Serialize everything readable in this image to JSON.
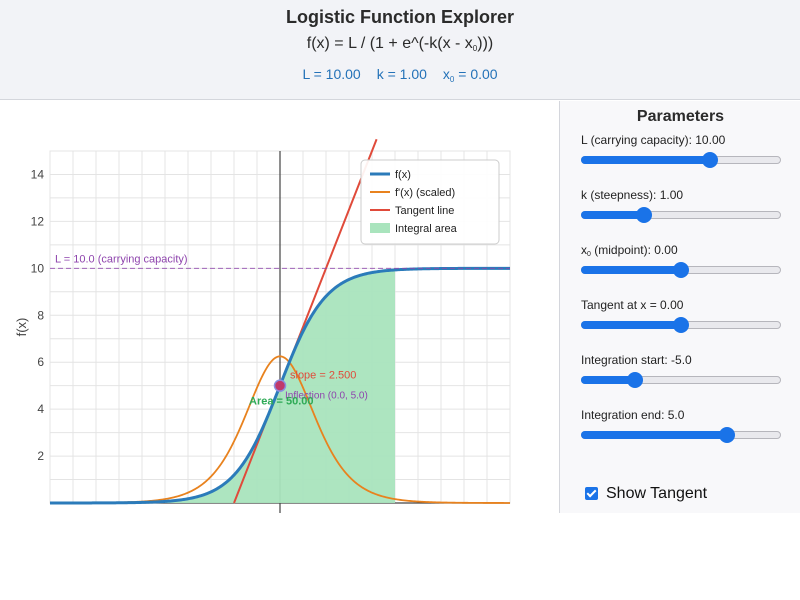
{
  "header": {
    "title": "Logistic Function Explorer",
    "formula_main": "f(x) = L / (1 + e^(-k(x - x",
    "formula_sub": "0",
    "formula_end": ")))",
    "readout_L": "L = 10.00",
    "readout_k": "k = 1.00",
    "readout_x0_prefix": "x",
    "readout_x0_sub": "0",
    "readout_x0_value": " = 0.00"
  },
  "sidebar": {
    "title": "Parameters",
    "params": [
      {
        "label": "L (carrying capacity): 10.00",
        "fraction": 0.655
      },
      {
        "label": "k (steepness): 1.00",
        "fraction": 0.3
      },
      {
        "label_prefix": "x",
        "label_sub": "0",
        "label_rest": " (midpoint): 0.00",
        "fraction": 0.5
      },
      {
        "label": "Tangent at x = 0.00",
        "fraction": 0.5
      },
      {
        "label": "Integration start: -5.0",
        "fraction": 0.25
      },
      {
        "label": "Integration end: 5.0",
        "fraction": 0.75
      }
    ],
    "show_tangent_label": "Show Tangent",
    "show_tangent_checked": true,
    "accent_color": "#1a73e8"
  },
  "chart_data": {
    "type": "line",
    "ylabel": "f(x)",
    "xlabel": "",
    "xlim": [
      -10,
      10
    ],
    "ylim": [
      0,
      15
    ],
    "y_ticks": [
      2,
      4,
      6,
      8,
      10,
      12,
      14
    ],
    "grid": true,
    "legend_position": "top-right",
    "legend": [
      "f(x)",
      "f'(x) (scaled)",
      "Tangent line",
      "Integral area"
    ],
    "L": 10,
    "k": 1,
    "x0": 0,
    "tangent_x": 0,
    "tangent_slope": 2.5,
    "integration_range": [
      -5,
      5
    ],
    "integral_area": 50.0,
    "derivative_scale": 2.5,
    "series": [
      {
        "name": "f(x)",
        "color": "#2b7bba"
      },
      {
        "name": "f'(x) (scaled)",
        "color": "#e8821e"
      },
      {
        "name": "Tangent line",
        "color": "#e04a3a"
      },
      {
        "name": "Integral area",
        "color": "#a9e4bd"
      }
    ],
    "annotations": {
      "capacity_label": "L = 10.0 (carrying capacity)",
      "slope_label": "slope = 2.500",
      "inflection_label": "Inflection (0.0, 5.0)",
      "area_label": "Area = 50.00"
    },
    "capacity_color": "#8e44ad",
    "inflection_color": "#c0396b",
    "area_label_color": "#2eaa56"
  }
}
